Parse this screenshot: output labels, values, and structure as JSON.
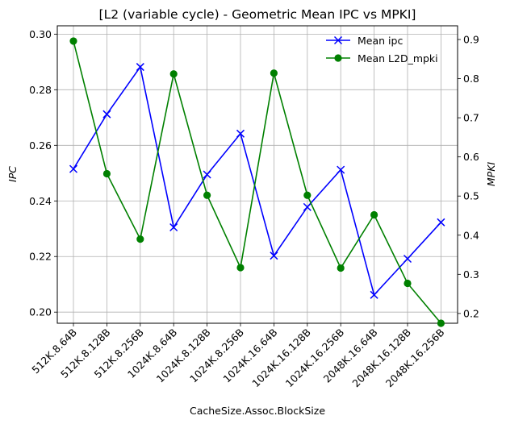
{
  "chart_data": {
    "type": "line",
    "title": "[L2 (variable cycle) - Geometric Mean IPC vs MPKI]",
    "xlabel": "CacheSize.Assoc.BlockSize",
    "ylabel_left": "IPC",
    "ylabel_right": "MPKI",
    "categories": [
      "512K.8.64B",
      "512K.8.128B",
      "512K.8.256B",
      "1024K.8.64B",
      "1024K.8.128B",
      "1024K.8.256B",
      "1024K.16.64B",
      "1024K.16.128B",
      "1024K.16.256B",
      "2048K.16.64B",
      "2048K.16.128B",
      "2048K.16.256B"
    ],
    "left_ticks": [
      "0.20",
      "0.22",
      "0.24",
      "0.26",
      "0.28",
      "0.30"
    ],
    "right_ticks": [
      "0.2",
      "0.3",
      "0.4",
      "0.5",
      "0.6",
      "0.7",
      "0.8",
      "0.9"
    ],
    "ylim_left": [
      0.196,
      0.303
    ],
    "ylim_right": [
      0.175,
      0.935
    ],
    "grid": true,
    "legend_position": "top-right",
    "series": [
      {
        "name": "Mean ipc",
        "axis": "left",
        "color": "#0000ff",
        "marker": "x",
        "values": [
          0.2515,
          0.2712,
          0.2882,
          0.2305,
          0.2495,
          0.2642,
          0.2203,
          0.2378,
          0.2512,
          0.2062,
          0.2192,
          0.2323
        ]
      },
      {
        "name": "Mean L2D_mpki",
        "axis": "right",
        "color": "#008000",
        "marker": "o",
        "values": [
          0.896,
          0.557,
          0.39,
          0.812,
          0.502,
          0.317,
          0.814,
          0.502,
          0.316,
          0.452,
          0.277,
          0.175
        ]
      }
    ]
  }
}
